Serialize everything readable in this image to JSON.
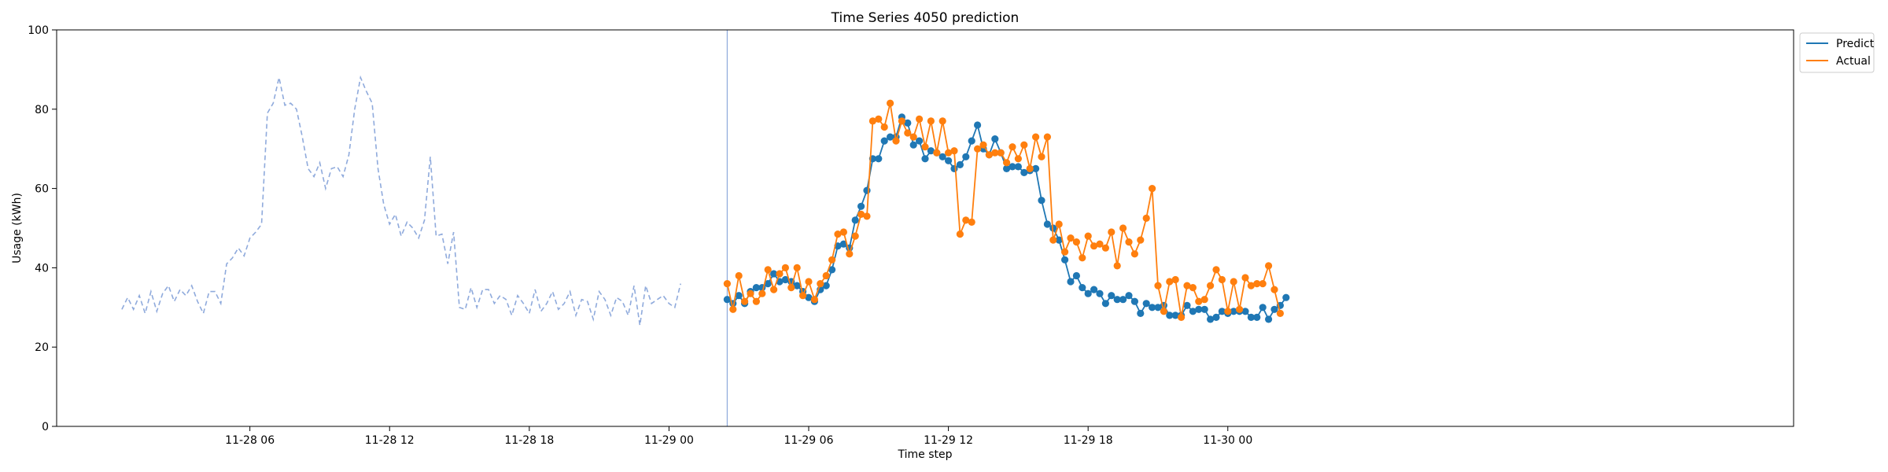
{
  "chart_data": {
    "type": "line",
    "title": "Time Series 4050 prediction",
    "xlabel": "Time step",
    "ylabel": "Usage (kWh)",
    "ylim": [
      0,
      100
    ],
    "yticks": [
      0,
      20,
      40,
      60,
      80,
      100
    ],
    "xlim": [
      -2.3,
      72.3
    ],
    "x_unit_note": "hours from 11-28 00:00",
    "xticks": [
      {
        "pos": 6,
        "label": "11-28 06"
      },
      {
        "pos": 12,
        "label": "11-28 12"
      },
      {
        "pos": 18,
        "label": "11-28 18"
      },
      {
        "pos": 24,
        "label": "11-29 00"
      },
      {
        "pos": 30,
        "label": "11-29 06"
      },
      {
        "pos": 36,
        "label": "11-29 12"
      },
      {
        "pos": 42,
        "label": "11-29 18"
      },
      {
        "pos": 48,
        "label": "11-30 00"
      }
    ],
    "step_hours": 0.25,
    "history": {
      "start": 0.5,
      "color": "#8faadc",
      "values": [
        29.5,
        32.5,
        29.5,
        33,
        28.5,
        34,
        29,
        33.5,
        35.5,
        31.5,
        34.5,
        33,
        35.5,
        31.5,
        28.5,
        34,
        34,
        31,
        41,
        42.5,
        45,
        43,
        47.5,
        49,
        51,
        79,
        81.5,
        88,
        81,
        81.5,
        80,
        73,
        65,
        63,
        66.5,
        60,
        65,
        65.5,
        63,
        68.5,
        80,
        88,
        84.5,
        81.5,
        65,
        56,
        51,
        53.5,
        48,
        51.5,
        50,
        47.5,
        52,
        68,
        48,
        48.5,
        41,
        49,
        30,
        29.5,
        35,
        30,
        34.5,
        34.5,
        31,
        33,
        32,
        28,
        33,
        31,
        28.5,
        34.5,
        29,
        31,
        34,
        29.5,
        31,
        34,
        28,
        32,
        31.5,
        27,
        34,
        32,
        28,
        32.5,
        31.5,
        28,
        35.5,
        25.5,
        35.5,
        31,
        32,
        33,
        31,
        30,
        36
      ]
    },
    "forecast_start": 26.5,
    "divider_x": 26.5,
    "divider_color": "#8faadc",
    "series": [
      {
        "name": "Predict",
        "color": "#1f77b4",
        "values": [
          32,
          31,
          33,
          31,
          34,
          35,
          35,
          36,
          38.5,
          36.5,
          37,
          36.5,
          35.5,
          34,
          32.5,
          31.5,
          34.5,
          35.5,
          39.5,
          45.5,
          46,
          45,
          52,
          55.5,
          59.5,
          67.5,
          67.5,
          72,
          73,
          73,
          78,
          76.5,
          71,
          72,
          67.5,
          69.5,
          69,
          68,
          67,
          65,
          66,
          68,
          72,
          76,
          70,
          68.5,
          72.5,
          69,
          65,
          65.5,
          65.5,
          64,
          64.5,
          65,
          57,
          51,
          50,
          47,
          42,
          36.5,
          38,
          35,
          33.5,
          34.5,
          33.5,
          31,
          33,
          32,
          32,
          33,
          31.5,
          28.5,
          31,
          30,
          30,
          30.5,
          28,
          28,
          28,
          30.5,
          29,
          29.5,
          29.5,
          27,
          27.5,
          29,
          28.5,
          29,
          29,
          29,
          27.5,
          27.5,
          30,
          27,
          29.5,
          30.5,
          32.5
        ]
      },
      {
        "name": "Actual",
        "color": "#ff7f0e",
        "values": [
          36,
          29.5,
          38,
          31.5,
          33.5,
          31.5,
          33.5,
          39.5,
          34.5,
          38.5,
          40,
          35,
          40,
          33,
          36.5,
          32,
          36,
          38,
          42,
          48.5,
          49,
          43.5,
          48,
          53.5,
          53,
          77,
          77.5,
          75.5,
          81.5,
          72,
          77,
          74,
          73,
          77.5,
          70.5,
          77,
          69,
          77,
          69,
          69.5,
          48.5,
          52,
          51.5,
          70,
          71,
          68.5,
          69,
          69,
          66.5,
          70.5,
          67.5,
          71,
          65,
          73,
          68,
          73,
          47,
          51,
          44,
          47.5,
          46.5,
          42.5,
          48,
          45.5,
          46,
          45,
          49,
          40.5,
          50,
          46.5,
          43.5,
          47,
          52.5,
          60,
          35.5,
          29,
          36.5,
          37,
          27.5,
          35.5,
          35,
          31.5,
          32,
          35.5,
          39.5,
          37,
          29,
          36.5,
          29.5,
          37.5,
          35.5,
          36,
          36,
          40.5,
          34.5,
          28.5
        ]
      }
    ],
    "legend": {
      "placement": "outside-top-right",
      "entries": [
        "Predict",
        "Actual"
      ]
    },
    "grid": false
  }
}
